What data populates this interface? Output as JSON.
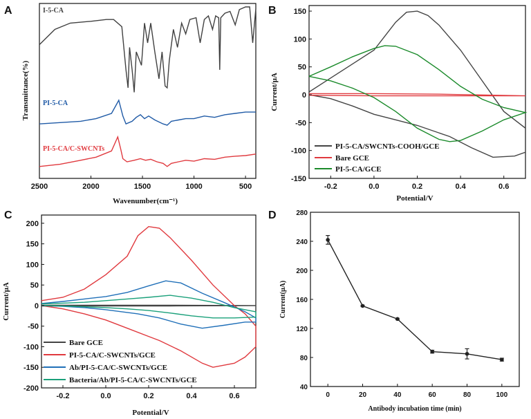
{
  "chart_data": [
    {
      "panel": "A",
      "type": "line",
      "xlabel": "Wavenumber(cm⁻¹)",
      "ylabel": "Transmittance(%)",
      "xlim": [
        2500,
        400
      ],
      "xticks": [
        2500,
        2000,
        1500,
        1000,
        500
      ],
      "yticks_shown": false,
      "series": [
        {
          "name": "I-5-CA",
          "color": "#404040",
          "points": [
            [
              2500,
              0.58
            ],
            [
              2350,
              0.75
            ],
            [
              2200,
              0.82
            ],
            [
              2000,
              0.84
            ],
            [
              1850,
              0.86
            ],
            [
              1780,
              0.86
            ],
            [
              1700,
              0.78
            ],
            [
              1660,
              0.3
            ],
            [
              1640,
              0.1
            ],
            [
              1625,
              0.55
            ],
            [
              1600,
              0.3
            ],
            [
              1580,
              0.05
            ],
            [
              1560,
              0.5
            ],
            [
              1510,
              0.35
            ],
            [
              1480,
              0.82
            ],
            [
              1450,
              0.6
            ],
            [
              1420,
              0.82
            ],
            [
              1380,
              0.5
            ],
            [
              1340,
              0.2
            ],
            [
              1310,
              0.5
            ],
            [
              1280,
              0.12
            ],
            [
              1260,
              0.1
            ],
            [
              1240,
              0.4
            ],
            [
              1200,
              0.75
            ],
            [
              1160,
              0.55
            ],
            [
              1120,
              0.82
            ],
            [
              1080,
              0.7
            ],
            [
              1040,
              0.86
            ],
            [
              980,
              0.88
            ],
            [
              940,
              0.6
            ],
            [
              900,
              0.86
            ],
            [
              860,
              0.9
            ],
            [
              820,
              0.75
            ],
            [
              790,
              0.9
            ],
            [
              760,
              0.88
            ],
            [
              750,
              0.3
            ],
            [
              740,
              0.88
            ],
            [
              700,
              0.93
            ],
            [
              650,
              0.95
            ],
            [
              600,
              0.8
            ],
            [
              560,
              0.97
            ],
            [
              500,
              1.0
            ],
            [
              460,
              1.0
            ],
            [
              430,
              0.6
            ],
            [
              400,
              0.98
            ]
          ]
        },
        {
          "name": "PI-5-CA",
          "color": "#1f5aa6",
          "points": [
            [
              2500,
              0.1
            ],
            [
              2300,
              0.15
            ],
            [
              2100,
              0.2
            ],
            [
              1950,
              0.3
            ],
            [
              1800,
              0.5
            ],
            [
              1730,
              1.0
            ],
            [
              1690,
              0.4
            ],
            [
              1660,
              0.1
            ],
            [
              1600,
              0.2
            ],
            [
              1560,
              0.35
            ],
            [
              1520,
              0.45
            ],
            [
              1480,
              0.3
            ],
            [
              1440,
              0.4
            ],
            [
              1380,
              0.25
            ],
            [
              1300,
              0.1
            ],
            [
              1260,
              0.05
            ],
            [
              1220,
              0.2
            ],
            [
              1150,
              0.25
            ],
            [
              1080,
              0.3
            ],
            [
              1000,
              0.3
            ],
            [
              900,
              0.4
            ],
            [
              800,
              0.35
            ],
            [
              700,
              0.45
            ],
            [
              600,
              0.5
            ],
            [
              500,
              0.55
            ],
            [
              400,
              0.55
            ]
          ]
        },
        {
          "name": "PI-5-CA/C-SWCNTs",
          "color": "#e0393e",
          "points": [
            [
              2500,
              0.05
            ],
            [
              2300,
              0.12
            ],
            [
              2100,
              0.25
            ],
            [
              1950,
              0.35
            ],
            [
              1800,
              0.55
            ],
            [
              1740,
              1.0
            ],
            [
              1710,
              0.6
            ],
            [
              1690,
              0.3
            ],
            [
              1650,
              0.2
            ],
            [
              1580,
              0.25
            ],
            [
              1520,
              0.3
            ],
            [
              1470,
              0.25
            ],
            [
              1420,
              0.28
            ],
            [
              1360,
              0.2
            ],
            [
              1300,
              0.15
            ],
            [
              1260,
              0.05
            ],
            [
              1220,
              0.15
            ],
            [
              1150,
              0.2
            ],
            [
              1080,
              0.25
            ],
            [
              1000,
              0.22
            ],
            [
              900,
              0.3
            ],
            [
              800,
              0.28
            ],
            [
              700,
              0.35
            ],
            [
              600,
              0.38
            ],
            [
              500,
              0.4
            ],
            [
              400,
              0.45
            ]
          ]
        }
      ]
    },
    {
      "panel": "B",
      "type": "line",
      "xlabel": "Potential/V",
      "ylabel": "Current/μA",
      "xlim": [
        -0.3,
        0.7
      ],
      "ylim": [
        -150,
        160
      ],
      "xticks": [
        -0.2,
        0.0,
        0.2,
        0.4,
        0.6
      ],
      "yticks": [
        -150,
        -100,
        -50,
        0,
        50,
        100,
        150
      ],
      "legend": "bottom-left",
      "series": [
        {
          "name": "PI-5-CA/SWCNTs-COOH/GCE",
          "color": "#444444",
          "points": [
            [
              -0.3,
              5
            ],
            [
              -0.2,
              30
            ],
            [
              -0.1,
              55
            ],
            [
              0.0,
              80
            ],
            [
              0.05,
              105
            ],
            [
              0.1,
              130
            ],
            [
              0.15,
              148
            ],
            [
              0.2,
              150
            ],
            [
              0.25,
              142
            ],
            [
              0.3,
              125
            ],
            [
              0.4,
              80
            ],
            [
              0.5,
              25
            ],
            [
              0.6,
              -30
            ],
            [
              0.7,
              -60
            ],
            [
              0.7,
              -103
            ],
            [
              0.65,
              -110
            ],
            [
              0.55,
              -112
            ],
            [
              0.45,
              -95
            ],
            [
              0.35,
              -75
            ],
            [
              0.2,
              -55
            ],
            [
              0.1,
              -45
            ],
            [
              0.0,
              -35
            ],
            [
              -0.1,
              -20
            ],
            [
              -0.2,
              -7
            ],
            [
              -0.3,
              0
            ]
          ]
        },
        {
          "name": "Bare GCE",
          "color": "#e0393e",
          "points": [
            [
              -0.3,
              2
            ],
            [
              0.0,
              2
            ],
            [
              0.3,
              1
            ],
            [
              0.7,
              -2
            ],
            [
              0.3,
              -2
            ],
            [
              0.0,
              -2
            ],
            [
              -0.3,
              -1
            ]
          ]
        },
        {
          "name": "PI-5-CA/GCE",
          "color": "#1a8a2a",
          "points": [
            [
              -0.3,
              33
            ],
            [
              -0.2,
              50
            ],
            [
              -0.1,
              68
            ],
            [
              0.0,
              83
            ],
            [
              0.05,
              88
            ],
            [
              0.1,
              87
            ],
            [
              0.2,
              72
            ],
            [
              0.3,
              45
            ],
            [
              0.4,
              15
            ],
            [
              0.5,
              -8
            ],
            [
              0.6,
              -23
            ],
            [
              0.7,
              -32
            ],
            [
              0.7,
              -32
            ],
            [
              0.6,
              -45
            ],
            [
              0.5,
              -65
            ],
            [
              0.4,
              -82
            ],
            [
              0.35,
              -84
            ],
            [
              0.3,
              -80
            ],
            [
              0.2,
              -60
            ],
            [
              0.1,
              -30
            ],
            [
              0.0,
              -5
            ],
            [
              -0.1,
              12
            ],
            [
              -0.2,
              25
            ],
            [
              -0.3,
              33
            ]
          ]
        }
      ]
    },
    {
      "panel": "C",
      "type": "line",
      "xlabel": "Potential/V",
      "ylabel": "Current/μA",
      "xlim": [
        -0.3,
        0.7
      ],
      "ylim": [
        -200,
        220
      ],
      "xticks": [
        -0.2,
        0.0,
        0.2,
        0.4,
        0.6
      ],
      "yticks": [
        -200,
        -150,
        -100,
        -50,
        0,
        50,
        100,
        150,
        200
      ],
      "legend": "bottom-left",
      "series": [
        {
          "name": "Bare GCE",
          "color": "#444444",
          "points": [
            [
              -0.3,
              1
            ],
            [
              0.0,
              1
            ],
            [
              0.3,
              1
            ],
            [
              0.7,
              0
            ],
            [
              0.3,
              -1
            ],
            [
              0.0,
              -1
            ],
            [
              -0.3,
              -1
            ]
          ]
        },
        {
          "name": "PI-5-CA/C-SWCNTs/GCE",
          "color": "#e0393e",
          "points": [
            [
              -0.3,
              12
            ],
            [
              -0.2,
              20
            ],
            [
              -0.1,
              40
            ],
            [
              0.0,
              75
            ],
            [
              0.1,
              120
            ],
            [
              0.15,
              170
            ],
            [
              0.2,
              192
            ],
            [
              0.25,
              188
            ],
            [
              0.3,
              165
            ],
            [
              0.4,
              110
            ],
            [
              0.5,
              50
            ],
            [
              0.6,
              0
            ],
            [
              0.65,
              -20
            ],
            [
              0.7,
              -50
            ],
            [
              0.7,
              -100
            ],
            [
              0.65,
              -125
            ],
            [
              0.6,
              -140
            ],
            [
              0.5,
              -150
            ],
            [
              0.45,
              -140
            ],
            [
              0.35,
              -110
            ],
            [
              0.25,
              -85
            ],
            [
              0.2,
              -75
            ],
            [
              0.1,
              -55
            ],
            [
              0.0,
              -35
            ],
            [
              -0.1,
              -20
            ],
            [
              -0.2,
              -8
            ],
            [
              -0.3,
              0
            ]
          ]
        },
        {
          "name": "Ab/PI-5-CA/C-SWCNTs/GCE",
          "color": "#1f6fb8",
          "points": [
            [
              -0.3,
              5
            ],
            [
              -0.2,
              10
            ],
            [
              -0.1,
              16
            ],
            [
              0.0,
              22
            ],
            [
              0.1,
              32
            ],
            [
              0.2,
              48
            ],
            [
              0.28,
              60
            ],
            [
              0.35,
              55
            ],
            [
              0.45,
              30
            ],
            [
              0.55,
              8
            ],
            [
              0.65,
              -15
            ],
            [
              0.7,
              -30
            ],
            [
              0.7,
              -40
            ],
            [
              0.65,
              -40
            ],
            [
              0.55,
              -48
            ],
            [
              0.45,
              -55
            ],
            [
              0.35,
              -45
            ],
            [
              0.25,
              -30
            ],
            [
              0.15,
              -20
            ],
            [
              0.0,
              -10
            ],
            [
              -0.1,
              -5
            ],
            [
              -0.2,
              -2
            ],
            [
              -0.3,
              0
            ]
          ]
        },
        {
          "name": "Bacteria/Ab/PI-5-CA/C-SWCNTs/GCE",
          "color": "#1aa07a",
          "points": [
            [
              -0.3,
              4
            ],
            [
              -0.2,
              6
            ],
            [
              -0.1,
              8
            ],
            [
              0.0,
              12
            ],
            [
              0.1,
              16
            ],
            [
              0.2,
              20
            ],
            [
              0.3,
              25
            ],
            [
              0.4,
              18
            ],
            [
              0.5,
              8
            ],
            [
              0.6,
              -5
            ],
            [
              0.7,
              -15
            ],
            [
              0.7,
              -28
            ],
            [
              0.6,
              -30
            ],
            [
              0.5,
              -30
            ],
            [
              0.4,
              -25
            ],
            [
              0.3,
              -18
            ],
            [
              0.2,
              -12
            ],
            [
              0.1,
              -8
            ],
            [
              0.0,
              -5
            ],
            [
              -0.1,
              -3
            ],
            [
              -0.2,
              -1
            ],
            [
              -0.3,
              0
            ]
          ]
        }
      ]
    },
    {
      "panel": "D",
      "type": "scatter",
      "xlabel": "Antibody incubation time (min)",
      "ylabel": "Current(μA)",
      "xlim": [
        -10,
        110
      ],
      "ylim": [
        40,
        280
      ],
      "xticks": [
        0,
        20,
        40,
        60,
        80,
        100
      ],
      "yticks": [
        40,
        80,
        120,
        160,
        200,
        240,
        280
      ],
      "series": [
        {
          "name": "Current",
          "color": "#222222",
          "x": [
            0,
            20,
            40,
            60,
            80,
            100
          ],
          "values": [
            242,
            151,
            133,
            88,
            85,
            77
          ],
          "errors": [
            6,
            1,
            1,
            2,
            7,
            2
          ]
        }
      ]
    }
  ]
}
